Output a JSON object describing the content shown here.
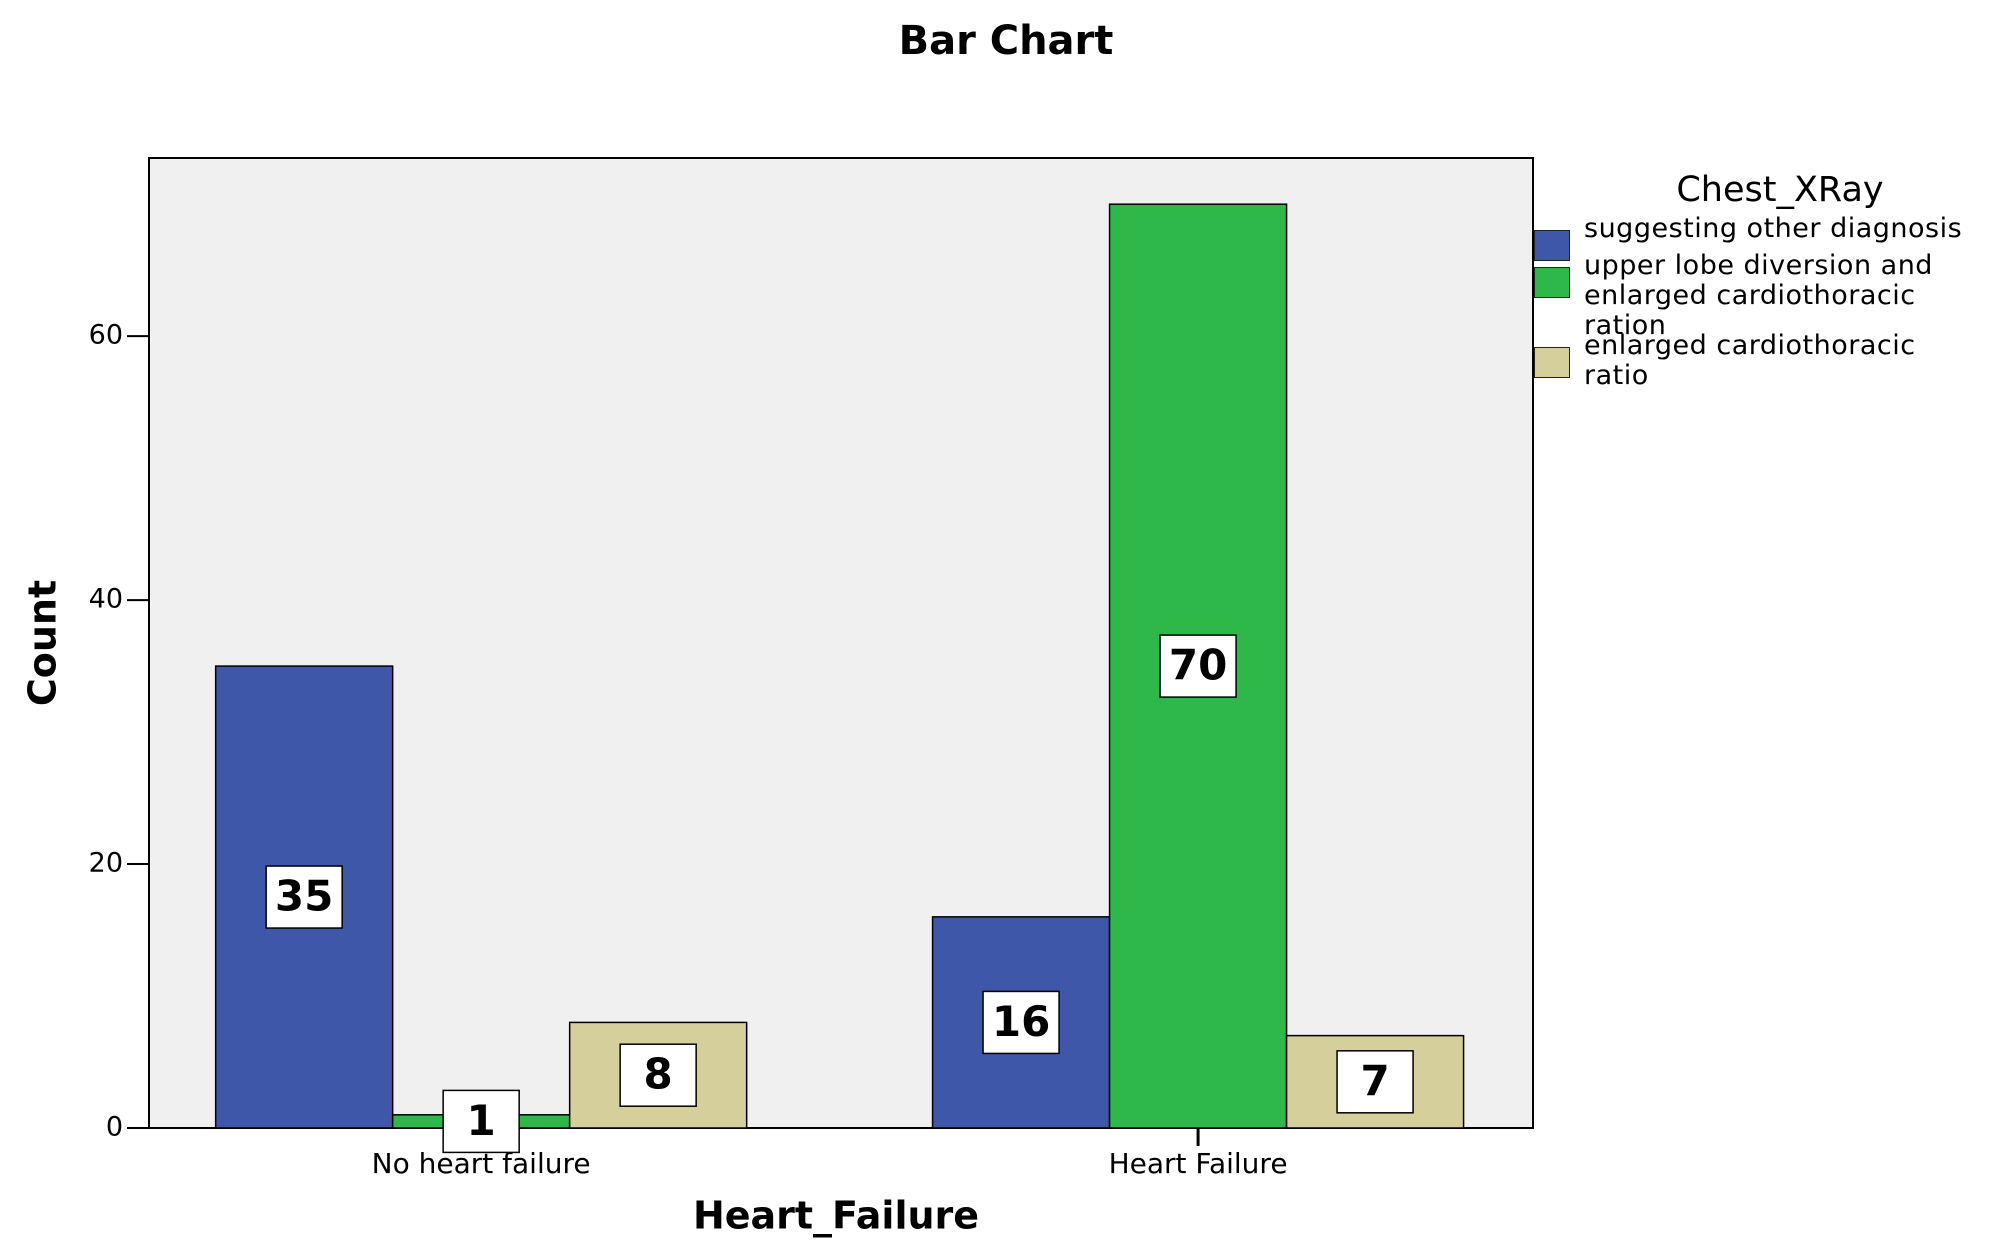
{
  "chart_data": {
    "type": "bar",
    "title": "Bar Chart",
    "x_label": "Heart_Failure",
    "y_label": "Count",
    "legend_title": "Chest_XRay",
    "categories": [
      "No heart failure",
      "Heart Failure"
    ],
    "series": [
      {
        "name": "suggesting other diagnosis",
        "color": "#3f57a8",
        "values": [
          35,
          16
        ]
      },
      {
        "name": "upper lobe diversion and enlarged cardiothoracic ration",
        "color": "#2eb84a",
        "values": [
          1,
          70
        ]
      },
      {
        "name": "enlarged cardiothoracic ratio",
        "color": "#d5cf9b",
        "values": [
          8,
          7
        ]
      }
    ],
    "ylim": [
      0,
      73.5
    ],
    "yticks": [
      0,
      20,
      40,
      60
    ],
    "grid": false,
    "background": "#f0f0f0"
  }
}
